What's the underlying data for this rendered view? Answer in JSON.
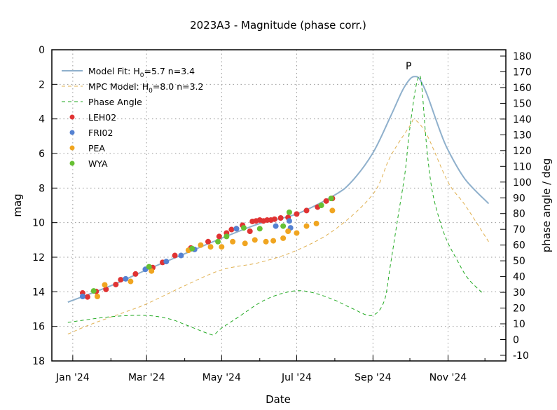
{
  "chart_data": {
    "type": "line+scatter",
    "title": "2023A3 - Magnitude (phase corr.)",
    "xlabel": "Date",
    "ylabel": "mag",
    "y2label": "phase angle / deg",
    "xlim": [
      "2023-12-15",
      "2024-12-18"
    ],
    "ylim": [
      18,
      0
    ],
    "y2lim": [
      -10,
      180
    ],
    "x_ticks": [
      {
        "date": "2024-01-01",
        "label": "Jan '24"
      },
      {
        "date": "2024-03-01",
        "label": "Mar '24"
      },
      {
        "date": "2024-05-01",
        "label": "May '24"
      },
      {
        "date": "2024-07-01",
        "label": "Jul '24"
      },
      {
        "date": "2024-09-01",
        "label": "Sep '24"
      },
      {
        "date": "2024-11-01",
        "label": "Nov '24"
      }
    ],
    "x_minor_ticks": [
      "2024-02-01",
      "2024-04-01",
      "2024-06-01",
      "2024-08-01",
      "2024-10-01",
      "2024-12-01"
    ],
    "y_ticks": [
      0,
      2,
      4,
      6,
      8,
      10,
      12,
      14,
      16,
      18
    ],
    "y2_ticks": [
      -10,
      0,
      10,
      20,
      30,
      40,
      50,
      60,
      70,
      80,
      90,
      100,
      110,
      120,
      130,
      140,
      150,
      160,
      170,
      180
    ],
    "grid": true,
    "legend_placement": "top-left",
    "annotations": [
      {
        "text": "P",
        "date": "2024-09-30",
        "mag": 0.9
      }
    ],
    "colors": {
      "model": "#8fb0cc",
      "mpc": "#e0b050",
      "phase": "#22aa22",
      "LEH02": "#e03333",
      "FRI02": "#5582d2",
      "PEA": "#f0a520",
      "WYA": "#66c033"
    },
    "series": [
      {
        "name": "Model Fit: H0=5.7 n=3.4",
        "legend_main": "Model Fit: H",
        "legend_sub": "0",
        "legend_rest": "=5.7 n=3.4",
        "kind": "line",
        "axis": "mag",
        "color_key": "model",
        "points": [
          [
            "2023-12-28",
            14.6
          ],
          [
            "2024-02-01",
            13.65
          ],
          [
            "2024-03-01",
            12.73
          ],
          [
            "2024-04-01",
            11.8
          ],
          [
            "2024-05-01",
            10.9
          ],
          [
            "2024-06-01",
            10.05
          ],
          [
            "2024-07-01",
            9.5
          ],
          [
            "2024-08-01",
            8.4
          ],
          [
            "2024-08-15",
            7.6
          ],
          [
            "2024-09-01",
            5.96
          ],
          [
            "2024-09-15",
            3.9
          ],
          [
            "2024-09-25",
            2.35
          ],
          [
            "2024-10-01",
            1.7
          ],
          [
            "2024-10-05",
            1.55
          ],
          [
            "2024-10-09",
            1.7
          ],
          [
            "2024-10-15",
            2.6
          ],
          [
            "2024-10-25",
            4.6
          ],
          [
            "2024-11-01",
            5.8
          ],
          [
            "2024-11-15",
            7.5
          ],
          [
            "2024-12-04",
            8.9
          ]
        ]
      },
      {
        "name": "MPC Model: H0=8.0 n=3.2",
        "legend_main": "MPC Model: H",
        "legend_sub": "0",
        "legend_rest": "=8.0 n=3.2",
        "kind": "dashed",
        "axis": "mag",
        "color_key": "mpc",
        "points": [
          [
            "2023-12-28",
            16.45
          ],
          [
            "2024-01-15",
            15.9
          ],
          [
            "2024-02-13",
            15.16
          ],
          [
            "2024-03-01",
            14.7
          ],
          [
            "2024-04-01",
            13.65
          ],
          [
            "2024-05-01",
            12.73
          ],
          [
            "2024-06-01",
            12.3
          ],
          [
            "2024-07-01",
            11.6
          ],
          [
            "2024-08-01",
            10.4
          ],
          [
            "2024-09-01",
            8.35
          ],
          [
            "2024-09-15",
            6.2
          ],
          [
            "2024-10-01",
            4.4
          ],
          [
            "2024-10-05",
            4.05
          ],
          [
            "2024-10-15",
            4.95
          ],
          [
            "2024-11-01",
            7.65
          ],
          [
            "2024-11-15",
            9.0
          ],
          [
            "2024-12-04",
            11.1
          ]
        ]
      },
      {
        "name": "Phase Angle",
        "legend_main": "Phase Angle",
        "kind": "dashed",
        "axis": "phase",
        "color_key": "phase",
        "points": [
          [
            "2023-12-28",
            10.9
          ],
          [
            "2024-02-01",
            14.5
          ],
          [
            "2024-03-01",
            15.3
          ],
          [
            "2024-03-20",
            13
          ],
          [
            "2024-04-01",
            9.6
          ],
          [
            "2024-04-20",
            3.8
          ],
          [
            "2024-04-25",
            3.3
          ],
          [
            "2024-05-01",
            7.3
          ],
          [
            "2024-05-15",
            14.5
          ],
          [
            "2024-06-01",
            23.4
          ],
          [
            "2024-06-15",
            28.3
          ],
          [
            "2024-07-01",
            31
          ],
          [
            "2024-07-15",
            29.6
          ],
          [
            "2024-08-01",
            25
          ],
          [
            "2024-08-15",
            19.8
          ],
          [
            "2024-08-31",
            15.3
          ],
          [
            "2024-09-10",
            24.2
          ],
          [
            "2024-09-15",
            46.5
          ],
          [
            "2024-09-21",
            76.3
          ],
          [
            "2024-09-27",
            105.7
          ],
          [
            "2024-09-30",
            128
          ],
          [
            "2024-10-03",
            146
          ],
          [
            "2024-10-06",
            161
          ],
          [
            "2024-10-09",
            167.6
          ],
          [
            "2024-10-11",
            157.8
          ],
          [
            "2024-10-14",
            128
          ],
          [
            "2024-10-17",
            105.7
          ],
          [
            "2024-10-20",
            91
          ],
          [
            "2024-10-25",
            76.3
          ],
          [
            "2024-10-31",
            63
          ],
          [
            "2024-11-08",
            51
          ],
          [
            "2024-11-17",
            39
          ],
          [
            "2024-11-29",
            29.6
          ]
        ]
      },
      {
        "name": "LEH02",
        "legend_main": "LEH02",
        "kind": "points",
        "axis": "mag",
        "color_key": "LEH02",
        "points": [
          [
            "2024-01-09",
            14.07
          ],
          [
            "2024-01-13",
            14.3
          ],
          [
            "2024-01-20",
            13.98
          ],
          [
            "2024-01-28",
            13.86
          ],
          [
            "2024-02-05",
            13.58
          ],
          [
            "2024-02-09",
            13.3
          ],
          [
            "2024-02-21",
            12.97
          ],
          [
            "2024-03-06",
            12.6
          ],
          [
            "2024-03-14",
            12.3
          ],
          [
            "2024-03-24",
            11.9
          ],
          [
            "2024-04-06",
            11.47
          ],
          [
            "2024-04-20",
            11.1
          ],
          [
            "2024-04-29",
            10.8
          ],
          [
            "2024-05-05",
            10.6
          ],
          [
            "2024-05-09",
            10.4
          ],
          [
            "2024-05-13",
            10.35
          ],
          [
            "2024-05-18",
            10.15
          ],
          [
            "2024-05-24",
            10.5
          ],
          [
            "2024-05-26",
            9.93
          ],
          [
            "2024-05-29",
            9.9
          ],
          [
            "2024-06-01",
            9.85
          ],
          [
            "2024-06-04",
            9.9
          ],
          [
            "2024-06-07",
            9.85
          ],
          [
            "2024-06-10",
            9.85
          ],
          [
            "2024-06-13",
            9.8
          ],
          [
            "2024-06-18",
            9.73
          ],
          [
            "2024-06-24",
            9.7
          ],
          [
            "2024-07-01",
            9.5
          ],
          [
            "2024-07-09",
            9.3
          ],
          [
            "2024-07-18",
            9.1
          ],
          [
            "2024-07-25",
            8.75
          ],
          [
            "2024-07-30",
            8.6
          ]
        ]
      },
      {
        "name": "FRI02",
        "legend_main": "FRI02",
        "kind": "points",
        "axis": "mag",
        "color_key": "FRI02",
        "points": [
          [
            "2024-01-09",
            14.27
          ],
          [
            "2024-02-13",
            13.25
          ],
          [
            "2024-02-29",
            12.7
          ],
          [
            "2024-03-17",
            12.25
          ],
          [
            "2024-03-29",
            11.9
          ],
          [
            "2024-04-09",
            11.55
          ],
          [
            "2024-05-13",
            10.35
          ],
          [
            "2024-06-14",
            10.2
          ],
          [
            "2024-06-25",
            9.9
          ],
          [
            "2024-06-26",
            10.3
          ]
        ]
      },
      {
        "name": "PEA",
        "legend_main": "PEA",
        "kind": "points",
        "axis": "mag",
        "color_key": "PEA",
        "points": [
          [
            "2024-01-21",
            14.27
          ],
          [
            "2024-01-27",
            13.6
          ],
          [
            "2024-02-17",
            13.4
          ],
          [
            "2024-03-05",
            12.8
          ],
          [
            "2024-04-04",
            11.6
          ],
          [
            "2024-04-14",
            11.3
          ],
          [
            "2024-04-22",
            11.4
          ],
          [
            "2024-05-01",
            11.4
          ],
          [
            "2024-05-10",
            11.1
          ],
          [
            "2024-05-20",
            11.2
          ],
          [
            "2024-05-28",
            11.0
          ],
          [
            "2024-06-06",
            11.1
          ],
          [
            "2024-06-12",
            11.05
          ],
          [
            "2024-06-20",
            10.9
          ],
          [
            "2024-06-24",
            10.5
          ],
          [
            "2024-07-01",
            10.6
          ],
          [
            "2024-07-09",
            10.2
          ],
          [
            "2024-07-17",
            10.05
          ],
          [
            "2024-07-30",
            9.3
          ]
        ]
      },
      {
        "name": "WYA",
        "legend_main": "WYA",
        "kind": "points",
        "axis": "mag",
        "color_key": "WYA",
        "points": [
          [
            "2024-01-18",
            13.95
          ],
          [
            "2024-03-03",
            12.55
          ],
          [
            "2024-04-07",
            11.5
          ],
          [
            "2024-04-28",
            11.1
          ],
          [
            "2024-05-05",
            10.8
          ],
          [
            "2024-05-19",
            10.3
          ],
          [
            "2024-06-01",
            10.35
          ],
          [
            "2024-06-20",
            10.2
          ],
          [
            "2024-06-25",
            9.4
          ],
          [
            "2024-07-21",
            9.0
          ],
          [
            "2024-07-29",
            8.6
          ]
        ]
      }
    ]
  }
}
